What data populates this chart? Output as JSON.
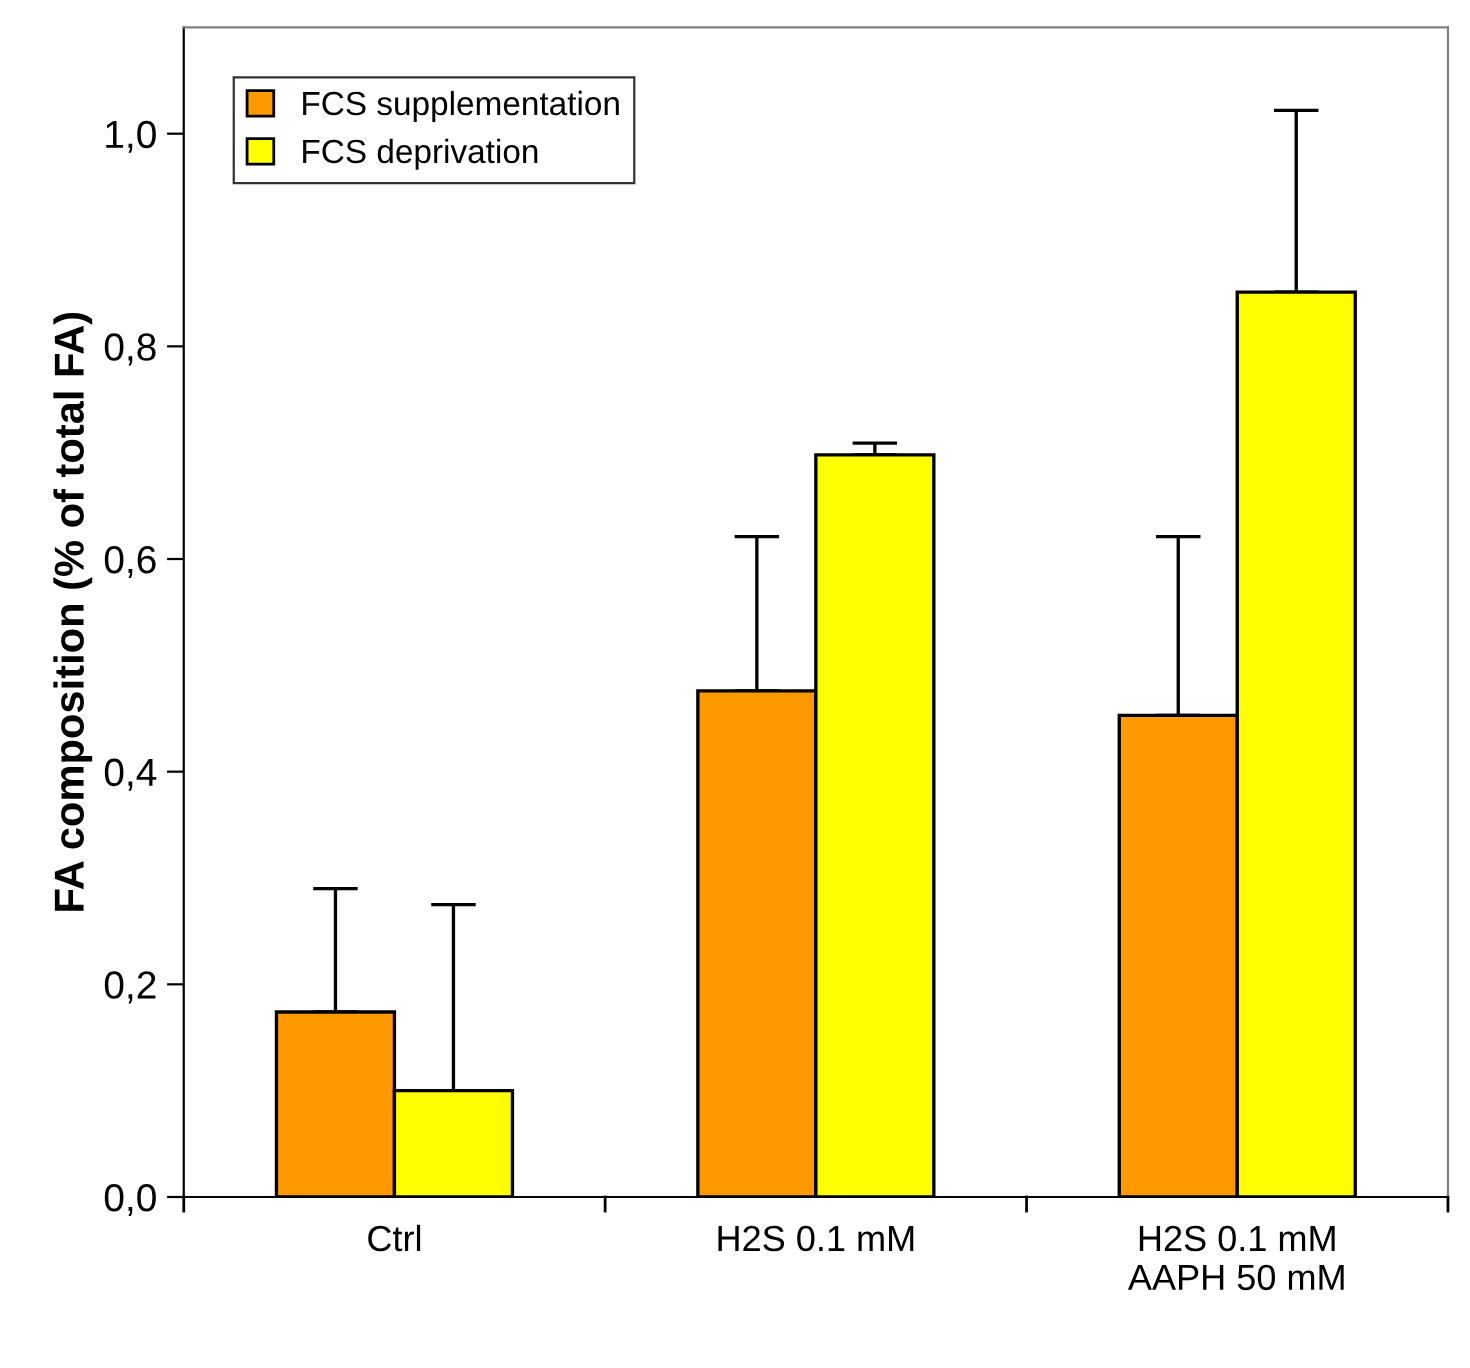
{
  "chart_data": {
    "type": "bar",
    "ylabel": "FA composition (% of total FA)",
    "categories": [
      "Ctrl",
      "H2S 0.1 mM",
      "H2S 0.1 mM\nAAPH 50 mM"
    ],
    "series": [
      {
        "name": "FCS supplementation",
        "color": "#ff9900",
        "values": [
          0.174,
          0.476,
          0.453
        ],
        "errors": [
          [
            0.174,
            0.29
          ],
          [
            0.476,
            0.621
          ],
          [
            0.453,
            0.621
          ]
        ]
      },
      {
        "name": "FCS deprivation",
        "color": "#ffff00",
        "values": [
          0.1,
          0.698,
          0.851
        ],
        "errors": [
          [
            0.1,
            0.275
          ],
          [
            0.698,
            0.709
          ],
          [
            0.851,
            1.022
          ]
        ]
      }
    ],
    "ylim": [
      0,
      1.1
    ],
    "yticks": [
      {
        "value": 0,
        "label": "0,0"
      },
      {
        "value": 0.2,
        "label": "0,2"
      },
      {
        "value": 0.4,
        "label": "0,4"
      },
      {
        "value": 0.6,
        "label": "0,6"
      },
      {
        "value": 0.8,
        "label": "0,8"
      },
      {
        "value": 1.0,
        "label": "1,0"
      }
    ],
    "grid": false,
    "legend": "top left"
  }
}
